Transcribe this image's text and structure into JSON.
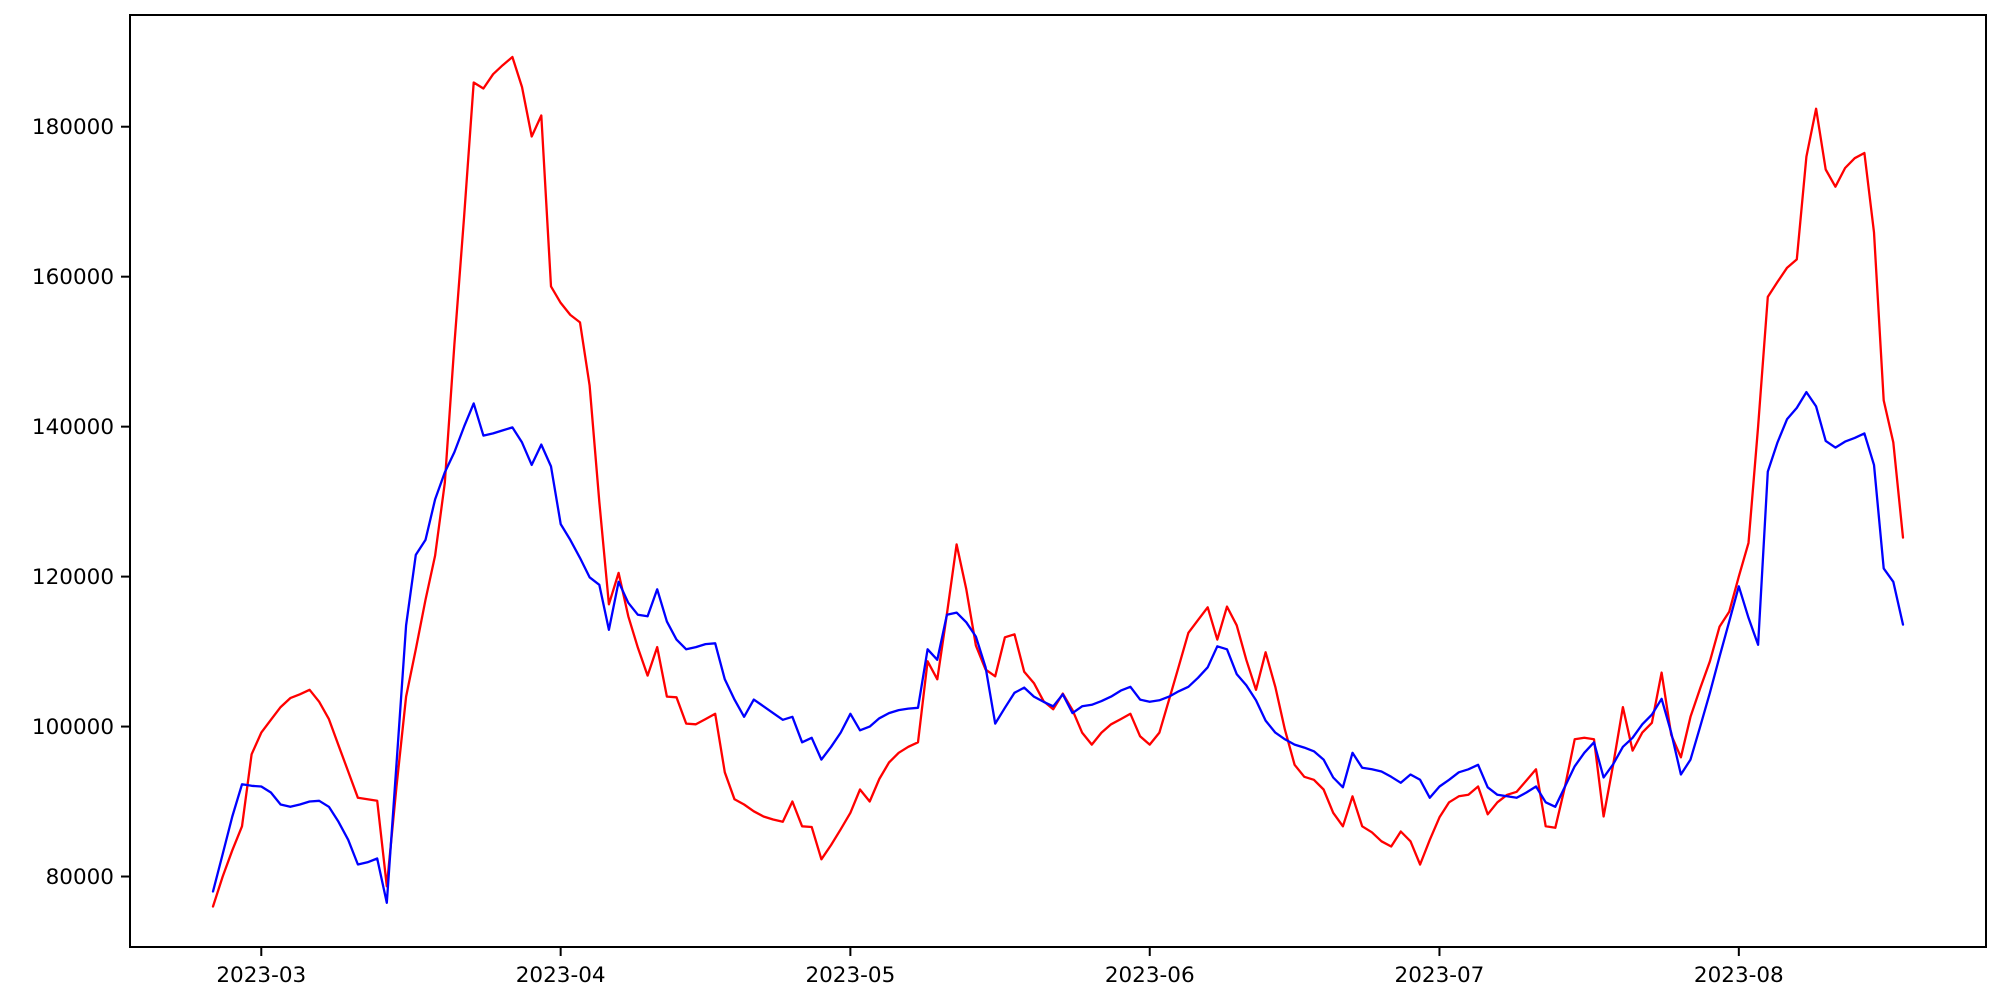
{
  "chart_data": {
    "type": "line",
    "title": "",
    "xlabel": "",
    "ylabel": "",
    "grid": false,
    "legend": false,
    "background_color": "#ffffff",
    "axis_color": "#000000",
    "ylim": [
      70600,
      194900
    ],
    "y_tick_values": [
      80000,
      100000,
      120000,
      140000,
      160000,
      180000
    ],
    "y_tick_labels": [
      "80000",
      "100000",
      "120000",
      "140000",
      "160000",
      "180000"
    ],
    "x_tick_labels": [
      "2023-03",
      "2023-04",
      "2023-05",
      "2023-06",
      "2023-07",
      "2023-08"
    ],
    "x": [
      "2023-02-24",
      "2023-02-25",
      "2023-02-26",
      "2023-02-27",
      "2023-02-28",
      "2023-03-01",
      "2023-03-02",
      "2023-03-03",
      "2023-03-04",
      "2023-03-05",
      "2023-03-06",
      "2023-03-07",
      "2023-03-08",
      "2023-03-09",
      "2023-03-10",
      "2023-03-11",
      "2023-03-12",
      "2023-03-13",
      "2023-03-14",
      "2023-03-15",
      "2023-03-16",
      "2023-03-17",
      "2023-03-18",
      "2023-03-19",
      "2023-03-20",
      "2023-03-21",
      "2023-03-22",
      "2023-03-23",
      "2023-03-24",
      "2023-03-25",
      "2023-03-26",
      "2023-03-27",
      "2023-03-28",
      "2023-03-29",
      "2023-03-30",
      "2023-03-31",
      "2023-04-01",
      "2023-04-02",
      "2023-04-03",
      "2023-04-04",
      "2023-04-05",
      "2023-04-06",
      "2023-04-07",
      "2023-04-08",
      "2023-04-09",
      "2023-04-10",
      "2023-04-11",
      "2023-04-12",
      "2023-04-13",
      "2023-04-14",
      "2023-04-15",
      "2023-04-16",
      "2023-04-17",
      "2023-04-18",
      "2023-04-19",
      "2023-04-20",
      "2023-04-21",
      "2023-04-22",
      "2023-04-23",
      "2023-04-24",
      "2023-04-25",
      "2023-04-26",
      "2023-04-27",
      "2023-04-28",
      "2023-04-29",
      "2023-04-30",
      "2023-05-01",
      "2023-05-02",
      "2023-05-03",
      "2023-05-04",
      "2023-05-05",
      "2023-05-06",
      "2023-05-07",
      "2023-05-08",
      "2023-05-09",
      "2023-05-10",
      "2023-05-11",
      "2023-05-12",
      "2023-05-13",
      "2023-05-14",
      "2023-05-15",
      "2023-05-16",
      "2023-05-17",
      "2023-05-18",
      "2023-05-19",
      "2023-05-20",
      "2023-05-21",
      "2023-05-22",
      "2023-05-23",
      "2023-05-24",
      "2023-05-25",
      "2023-05-26",
      "2023-05-27",
      "2023-05-28",
      "2023-05-29",
      "2023-05-30",
      "2023-05-31",
      "2023-06-01",
      "2023-06-02",
      "2023-06-03",
      "2023-06-04",
      "2023-06-05",
      "2023-06-06",
      "2023-06-07",
      "2023-06-08",
      "2023-06-09",
      "2023-06-10",
      "2023-06-11",
      "2023-06-12",
      "2023-06-13",
      "2023-06-14",
      "2023-06-15",
      "2023-06-16",
      "2023-06-17",
      "2023-06-18",
      "2023-06-19",
      "2023-06-20",
      "2023-06-21",
      "2023-06-22",
      "2023-06-23",
      "2023-06-24",
      "2023-06-25",
      "2023-06-26",
      "2023-06-27",
      "2023-06-28",
      "2023-06-29",
      "2023-06-30",
      "2023-07-01",
      "2023-07-02",
      "2023-07-03",
      "2023-07-04",
      "2023-07-05",
      "2023-07-06",
      "2023-07-07",
      "2023-07-08",
      "2023-07-09",
      "2023-07-10",
      "2023-07-11",
      "2023-07-12",
      "2023-07-13",
      "2023-07-14",
      "2023-07-15",
      "2023-07-16",
      "2023-07-17",
      "2023-07-18",
      "2023-07-19",
      "2023-07-20",
      "2023-07-21",
      "2023-07-22",
      "2023-07-23",
      "2023-07-24",
      "2023-07-25",
      "2023-07-26",
      "2023-07-27",
      "2023-07-28",
      "2023-07-29",
      "2023-07-30",
      "2023-07-31",
      "2023-08-01",
      "2023-08-02",
      "2023-08-03",
      "2023-08-04",
      "2023-08-05",
      "2023-08-06",
      "2023-08-07",
      "2023-08-08",
      "2023-08-09",
      "2023-08-10",
      "2023-08-11",
      "2023-08-12",
      "2023-08-13",
      "2023-08-14",
      "2023-08-15",
      "2023-08-16",
      "2023-08-17",
      "2023-08-18"
    ],
    "series": [
      {
        "name": "red-series",
        "color": "#ff0000",
        "values": [
          76000,
          80000,
          83500,
          86700,
          96300,
          99200,
          100900,
          102600,
          103800,
          104300,
          104900,
          103300,
          101000,
          97500,
          94000,
          90500,
          90300,
          90100,
          78700,
          92000,
          104000,
          110300,
          116900,
          122800,
          132500,
          151000,
          168000,
          185900,
          185100,
          187000,
          188200,
          189300,
          185300,
          178700,
          181500,
          158700,
          156500,
          154900,
          153900,
          145500,
          130000,
          116300,
          120500,
          114700,
          110500,
          106800,
          110600,
          104000,
          103900,
          100400,
          100300,
          101000,
          101700,
          93900,
          90300,
          89600,
          88700,
          88000,
          87600,
          87300,
          90000,
          86700,
          86600,
          82300,
          84200,
          86300,
          88500,
          91600,
          90000,
          93000,
          95200,
          96500,
          97300,
          97900,
          108700,
          106300,
          115000,
          124300,
          118300,
          110800,
          107600,
          106700,
          111900,
          112300,
          107300,
          105800,
          103400,
          102300,
          104400,
          102200,
          99200,
          97600,
          99200,
          100300,
          101000,
          101700,
          98700,
          97600,
          99200,
          103600,
          108000,
          112500,
          114200,
          115900,
          111600,
          116000,
          113500,
          108900,
          104900,
          109900,
          105300,
          99600,
          94900,
          93300,
          92900,
          91600,
          88500,
          86700,
          90700,
          86700,
          85900,
          84700,
          84000,
          86000,
          84700,
          81600,
          84900,
          87900,
          89900,
          90700,
          90900,
          92000,
          88300,
          89900,
          90900,
          91300,
          92800,
          94300,
          86700,
          86500,
          92000,
          98300,
          98500,
          98300,
          88000,
          95000,
          102600,
          96800,
          99200,
          100500,
          107200,
          98900,
          95900,
          101300,
          105100,
          108700,
          113300,
          115300,
          120000,
          124500,
          140000,
          157300,
          159300,
          161200,
          162300,
          176000,
          182400,
          174300,
          172000,
          174500,
          175800,
          176500,
          165900,
          143500,
          137900,
          125200
        ]
      },
      {
        "name": "blue-series",
        "color": "#0000ff",
        "values": [
          78000,
          83000,
          88000,
          92300,
          92100,
          92000,
          91200,
          89600,
          89300,
          89600,
          90000,
          90100,
          89300,
          87300,
          84900,
          81600,
          81900,
          82400,
          76500,
          95000,
          113500,
          122900,
          124900,
          130300,
          133900,
          136600,
          140000,
          143100,
          138800,
          139100,
          139500,
          139900,
          137900,
          134900,
          137600,
          134700,
          127000,
          124900,
          122500,
          119900,
          118900,
          112900,
          119300,
          116500,
          114900,
          114700,
          118300,
          114000,
          111600,
          110300,
          110600,
          111000,
          111100,
          106300,
          103600,
          101300,
          103600,
          102700,
          101800,
          100900,
          101300,
          97900,
          98500,
          95600,
          97300,
          99200,
          101700,
          99500,
          100000,
          101100,
          101800,
          102200,
          102400,
          102500,
          110300,
          108900,
          114900,
          115200,
          113900,
          112000,
          107900,
          100400,
          102500,
          104500,
          105200,
          104000,
          103300,
          102700,
          104300,
          101800,
          102700,
          102900,
          103400,
          104000,
          104800,
          105300,
          103600,
          103300,
          103500,
          104000,
          104700,
          105300,
          106500,
          107900,
          110700,
          110300,
          107000,
          105500,
          103500,
          100800,
          99200,
          98300,
          97600,
          97200,
          96700,
          95600,
          93200,
          91900,
          96500,
          94500,
          94300,
          94000,
          93300,
          92500,
          93600,
          92900,
          90500,
          92000,
          92900,
          93900,
          94300,
          94900,
          91900,
          90900,
          90700,
          90500,
          91200,
          92000,
          89900,
          89300,
          92000,
          94700,
          96500,
          97900,
          93200,
          95000,
          97300,
          98500,
          100300,
          101600,
          103700,
          99200,
          93600,
          95600,
          100000,
          104500,
          109300,
          114000,
          118700,
          114500,
          110900,
          134000,
          137900,
          141000,
          142500,
          144600,
          142700,
          138100,
          137200,
          138000,
          138500,
          139100,
          134900,
          121100,
          119300,
          113600
        ]
      }
    ]
  }
}
